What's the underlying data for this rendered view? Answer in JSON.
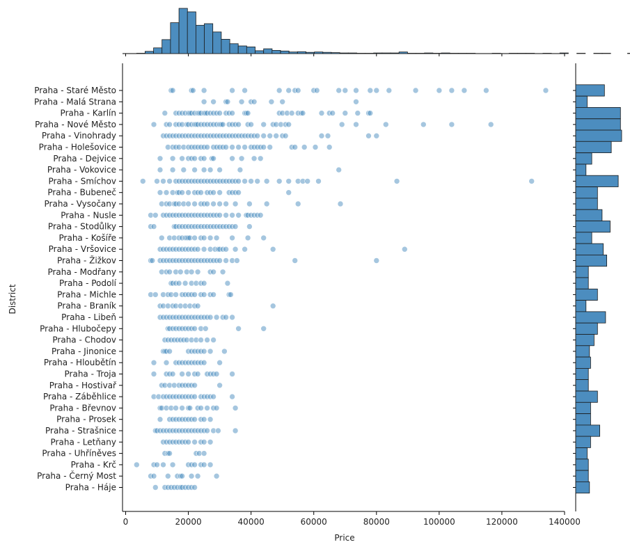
{
  "chart_data": {
    "type": "scatter",
    "xlabel": "Price",
    "ylabel": "District",
    "xlim": [
      -1000,
      140000
    ],
    "x_ticks": [
      0,
      20000,
      40000,
      60000,
      80000,
      100000,
      120000,
      140000
    ],
    "x_tick_labels": [
      "0",
      "20000",
      "40000",
      "60000",
      "80000",
      "100000",
      "120000",
      "140000"
    ],
    "color": "#4c8dbf",
    "categories": [
      "Praha - Staré Město",
      "Praha - Malá Strana",
      "Praha - Karlín",
      "Praha - Nové Město",
      "Praha - Vinohrady",
      "Praha - Holešovice",
      "Praha - Dejvice",
      "Praha - Vokovice",
      "Praha - Smíchov",
      "Praha - Bubeneč",
      "Praha - Vysočany",
      "Praha - Nusle",
      "Praha - Stodůlky",
      "Praha - Košíře",
      "Praha - Vršovice",
      "Praha - Žižkov",
      "Praha - Modřany",
      "Praha - Podolí",
      "Praha - Michle",
      "Praha - Braník",
      "Praha - Libeň",
      "Praha - Hlubočepy",
      "Praha - Chodov",
      "Praha - Jinonice",
      "Praha - Hloubětín",
      "Praha - Troja",
      "Praha - Hostivař",
      "Praha - Záběhlice",
      "Praha - Břevnov",
      "Praha - Prosek",
      "Praha - Strašnice",
      "Praha - Letňany",
      "Praha - Uhříněves",
      "Praha - Krč",
      "Praha - Černý Most",
      "Praha - Háje"
    ],
    "points": [
      [
        14500,
        15000,
        21000,
        21500,
        25000,
        34000,
        38000,
        49000,
        52000,
        54000,
        55000,
        60000,
        61000,
        68000,
        70000,
        73500,
        78000,
        80000,
        84000,
        92500,
        100000,
        104000,
        108000,
        115000,
        134000
      ],
      [
        25000,
        28000,
        32000,
        32500,
        37000,
        40000,
        41000,
        46500,
        50000,
        73500
      ],
      [
        12500,
        16000,
        17000,
        18000,
        19000,
        20000,
        20500,
        21000,
        22000,
        23000,
        23500,
        24000,
        25000,
        25500,
        26000,
        27000,
        28000,
        29000,
        30000,
        32000,
        33000,
        34000,
        38000,
        38500,
        39000,
        49000,
        50000,
        51500,
        53000,
        55000,
        56000,
        56500,
        62500,
        65000,
        66000,
        70000,
        74000,
        77500,
        78000
      ],
      [
        9000,
        13000,
        14000,
        16000,
        17000,
        18000,
        19500,
        20000,
        21000,
        22000,
        22500,
        23000,
        24000,
        25000,
        26000,
        27000,
        28000,
        29000,
        30000,
        30500,
        31000,
        33000,
        34000,
        35000,
        36000,
        39000,
        40000,
        44000,
        47000,
        48000,
        49500,
        51000,
        52000,
        69000,
        73500,
        83000,
        95000,
        104000,
        116500
      ],
      [
        12000,
        13000,
        14000,
        15000,
        16000,
        17000,
        18000,
        19000,
        20000,
        21000,
        22000,
        23000,
        24000,
        25000,
        26000,
        27000,
        28000,
        29000,
        30000,
        31000,
        32000,
        33000,
        34000,
        35000,
        36000,
        37000,
        38000,
        39000,
        40000,
        41000,
        42000,
        44000,
        46000,
        48000,
        50000,
        51000,
        62500,
        64500,
        77500,
        80000
      ],
      [
        13500,
        15000,
        16000,
        17000,
        18500,
        20000,
        21000,
        22000,
        23000,
        24000,
        25000,
        26000,
        28000,
        29000,
        30000,
        31000,
        32000,
        34000,
        36000,
        38000,
        40000,
        41000,
        42000,
        43000,
        44000,
        46000,
        53000,
        54000,
        57000,
        60500,
        65000
      ],
      [
        11000,
        15000,
        18000,
        20000,
        21000,
        22000,
        24000,
        25000,
        27500,
        28000,
        34000,
        37000,
        41000,
        43000
      ],
      [
        11000,
        15000,
        18500,
        22000,
        25000,
        27000,
        30000,
        36500,
        68000
      ],
      [
        5500,
        10000,
        12000,
        14000,
        16000,
        17000,
        18000,
        19000,
        20000,
        21000,
        22000,
        23000,
        24000,
        25000,
        26000,
        27000,
        28000,
        29000,
        30000,
        31000,
        32000,
        33000,
        34000,
        35000,
        36000,
        38000,
        40000,
        42000,
        45000,
        49000,
        52000,
        55000,
        56500,
        58000,
        61500,
        86500,
        129500
      ],
      [
        11000,
        13000,
        15000,
        16500,
        17000,
        18000,
        20000,
        22000,
        23000,
        24000,
        26000,
        27000,
        28000,
        30000,
        33000,
        34000,
        35000,
        36000,
        52000
      ],
      [
        11500,
        13000,
        14000,
        15500,
        16000,
        17000,
        18500,
        20000,
        22000,
        24000,
        25000,
        26000,
        28000,
        30000,
        32000,
        35000,
        39500,
        45000,
        55000,
        68500
      ],
      [
        8000,
        9500,
        12000,
        13000,
        14000,
        15000,
        16000,
        17000,
        18000,
        19000,
        20000,
        21000,
        22000,
        23000,
        24000,
        25000,
        26000,
        27000,
        28000,
        29000,
        30000,
        32000,
        34000,
        36000,
        38500,
        39000,
        40000,
        41000,
        42000,
        43000
      ],
      [
        8000,
        9000,
        15500,
        16000,
        17000,
        18000,
        19000,
        20000,
        21000,
        22000,
        23000,
        24000,
        25000,
        26000,
        27000,
        28000,
        29000,
        30000,
        31000,
        32000,
        33000,
        34000,
        35000,
        39500
      ],
      [
        11500,
        14000,
        15500,
        17000,
        18000,
        19000,
        19500,
        20000,
        20500,
        22000,
        24000,
        25000,
        27000,
        29000,
        34000,
        39000,
        44000
      ],
      [
        11000,
        12000,
        13000,
        14000,
        15000,
        16000,
        17000,
        18000,
        19000,
        20000,
        21000,
        22000,
        23000,
        25000,
        27000,
        28500,
        29500,
        30000,
        31000,
        32000,
        35000,
        38000,
        47000,
        89000
      ],
      [
        8000,
        8500,
        11000,
        12000,
        13000,
        14000,
        15000,
        16000,
        17000,
        18000,
        19000,
        20000,
        21000,
        22000,
        23000,
        24000,
        25000,
        26000,
        27000,
        28000,
        29000,
        30000,
        32000,
        34000,
        35500,
        54000,
        80000
      ],
      [
        11500,
        13000,
        14000,
        16000,
        17500,
        19500,
        21000,
        23000,
        27000,
        28000,
        31000
      ],
      [
        14500,
        15000,
        16000,
        17000,
        19000,
        21000,
        22500,
        24000,
        25000,
        32500
      ],
      [
        8000,
        9500,
        12000,
        13500,
        14500,
        16000,
        18000,
        19000,
        20000,
        21000,
        22000,
        24000,
        25000,
        27000,
        28000,
        33000,
        33500
      ],
      [
        11000,
        12000,
        13500,
        15000,
        16000,
        17500,
        19000,
        20500,
        22000,
        23000,
        47000
      ],
      [
        11000,
        12000,
        13000,
        14000,
        15000,
        16000,
        17000,
        18000,
        19000,
        20000,
        21000,
        22000,
        23000,
        24000,
        25000,
        26000,
        27000,
        29000,
        31000,
        32000,
        34000
      ],
      [
        13500,
        14000,
        15000,
        16000,
        17000,
        18000,
        19000,
        20000,
        21000,
        22000,
        24000,
        25500,
        36000,
        44000
      ],
      [
        12500,
        13500,
        14500,
        15500,
        16500,
        17500,
        18500,
        19500,
        21000,
        22500,
        24000,
        26000,
        28000
      ],
      [
        12000,
        12500,
        13000,
        14000,
        20000,
        21000,
        22000,
        23000,
        24000,
        25000,
        27000,
        31500
      ],
      [
        9000,
        13000,
        16000,
        17000,
        18000,
        19000,
        20000,
        21000,
        22000,
        23000,
        24000,
        25000,
        30000
      ],
      [
        9000,
        13000,
        14000,
        15000,
        18000,
        20000,
        22000,
        23000,
        26000,
        27000,
        28000,
        29000,
        34000
      ],
      [
        11500,
        12500,
        14000,
        15500,
        17000,
        18000,
        19000,
        20000,
        21000,
        22000,
        30000
      ],
      [
        9000,
        10500,
        12000,
        13000,
        14000,
        15000,
        16000,
        17000,
        18000,
        19000,
        20000,
        21000,
        22000,
        24000,
        25000,
        26000,
        27000,
        28000,
        34000
      ],
      [
        11000,
        11500,
        13000,
        14500,
        16000,
        18000,
        20000,
        20500,
        23000,
        24000,
        26000,
        28000,
        29000,
        35000
      ],
      [
        11000,
        14000,
        15000,
        16000,
        17000,
        18000,
        19000,
        20000,
        21000,
        22000,
        24000,
        25000,
        27000
      ],
      [
        9500,
        10000,
        11000,
        12000,
        13000,
        14000,
        15000,
        16000,
        17000,
        18000,
        19000,
        20000,
        21000,
        22000,
        23000,
        24000,
        25000,
        26000,
        28000,
        29500,
        35000
      ],
      [
        12000,
        13000,
        14000,
        15000,
        16000,
        17000,
        18000,
        19000,
        20000,
        22000,
        24000,
        25000,
        27000
      ],
      [
        12500,
        13500,
        14000,
        22500,
        23500,
        25000
      ],
      [
        3500,
        9000,
        10000,
        12000,
        15000,
        20000,
        21000,
        22000,
        24000,
        25000,
        27000
      ],
      [
        8000,
        9000,
        13500,
        16500,
        17500,
        18000,
        21000,
        23000,
        29000
      ],
      [
        9500,
        12500,
        13500,
        14500,
        15500,
        16500,
        17500,
        18000,
        19000,
        20000,
        21000,
        22000
      ]
    ],
    "top_histogram": {
      "bin_start": 3500,
      "bin_width": 2700,
      "counts": [
        1,
        7,
        18,
        44,
        97,
        142,
        131,
        89,
        94,
        68,
        45,
        31,
        24,
        21,
        9,
        15,
        10,
        8,
        5,
        6,
        4,
        5,
        4,
        3,
        2,
        2,
        1,
        1,
        2,
        2,
        2,
        5,
        1,
        1,
        2,
        1,
        2,
        1,
        1,
        1,
        0,
        0,
        1,
        0,
        1,
        1,
        1,
        0,
        1,
        0,
        2,
        0,
        1,
        0,
        1,
        1,
        0,
        0,
        1,
        0,
        0,
        0,
        1,
        0,
        1,
        1
      ]
    },
    "right_histogram": {
      "counts": [
        25,
        10,
        39,
        39,
        40,
        31,
        14,
        9,
        37,
        19,
        19,
        23,
        30,
        14,
        24,
        27,
        11,
        11,
        19,
        9,
        26,
        19,
        16,
        12,
        13,
        11,
        11,
        19,
        13,
        13,
        21,
        13,
        10,
        11,
        11,
        12
      ]
    }
  }
}
